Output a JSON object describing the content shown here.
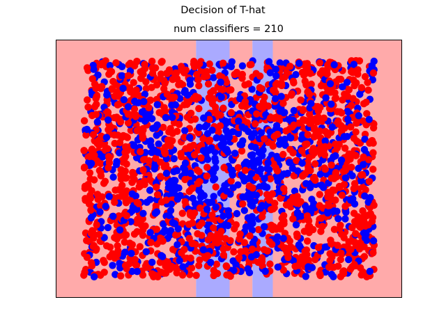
{
  "figure": {
    "suptitle": "Decision of T-hat"
  },
  "chart_data": {
    "type": "scatter",
    "title": "num classifiers = 210",
    "xlabel": "",
    "ylabel": "",
    "xlim": [
      0,
      1
    ],
    "ylim": [
      0,
      1
    ],
    "ticks": "none",
    "grid": false,
    "colors": {
      "region_red": "#ffaaaa",
      "region_blue": "#aaaaff",
      "point_red": "#ff0000",
      "point_blue": "#0000ff"
    },
    "decision_regions": [
      {
        "x_start": 0.0,
        "x_end": 0.405,
        "class": "red"
      },
      {
        "x_start": 0.405,
        "x_end": 0.502,
        "class": "blue"
      },
      {
        "x_start": 0.502,
        "x_end": 0.568,
        "class": "red"
      },
      {
        "x_start": 0.568,
        "x_end": 0.627,
        "class": "blue"
      },
      {
        "x_start": 0.627,
        "x_end": 1.0,
        "class": "red"
      }
    ],
    "points_spec": {
      "count": 2400,
      "x_range": [
        0.08,
        0.92
      ],
      "y_range": [
        0.08,
        0.92
      ],
      "blue_cluster_center": [
        0.53,
        0.49
      ],
      "blue_cluster_sigma": 0.14,
      "seed": 7
    }
  }
}
